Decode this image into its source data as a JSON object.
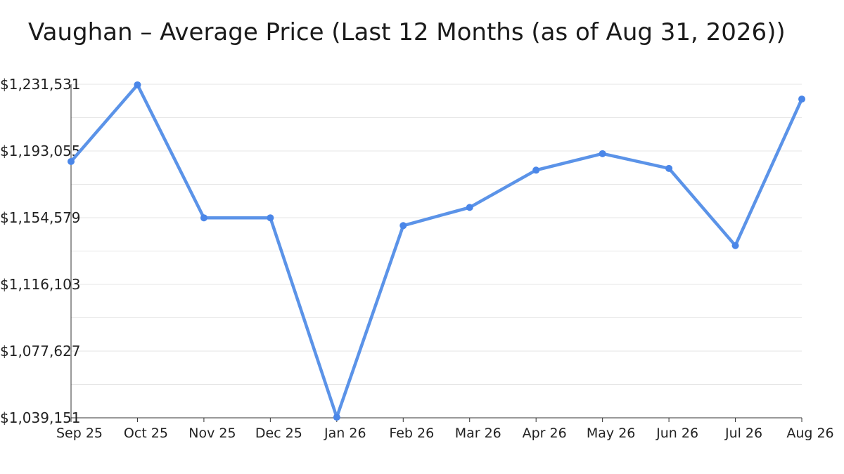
{
  "chart_data": {
    "type": "line",
    "title": "Vaughan – Average Price (Last 12 Months (as of Aug 31, 2026))",
    "xlabel": "",
    "ylabel": "",
    "categories": [
      "Sep 25",
      "Oct 25",
      "Nov 25",
      "Dec 25",
      "Jan 26",
      "Feb 26",
      "Mar 26",
      "Apr 26",
      "May 26",
      "Jun 26",
      "Jul 26",
      "Aug 26"
    ],
    "series": [
      {
        "values": [
          1187000,
          1231200,
          1154500,
          1154500,
          1039500,
          1150000,
          1160500,
          1182000,
          1191500,
          1183000,
          1138500,
          1223000
        ]
      }
    ],
    "ylim": [
      1039151,
      1231531
    ],
    "yticks": [
      1039151,
      1077627,
      1116103,
      1154579,
      1193055,
      1231531
    ],
    "ytick_labels": [
      "$1,039,151",
      "$1,077,627",
      "$1,116,103",
      "$1,154,579",
      "$1,193,055",
      "$1,231,531"
    ],
    "grid": true,
    "legend": "none",
    "colors": {
      "line": "#5b93e8",
      "marker": "#4a86e8",
      "grid": "#e6e6e6",
      "axis": "#333333"
    }
  }
}
